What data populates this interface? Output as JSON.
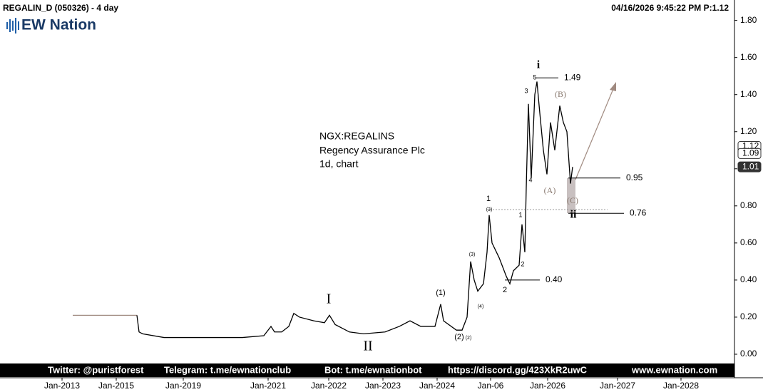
{
  "chart_data": {
    "type": "line",
    "title": "REGALIN_D (050326) - 4 day",
    "timestamp": "04/16/2026 9:45:22 PM  P:1.12",
    "logo": "EW Nation",
    "description": [
      "NGX:REGALINS",
      "Regency Assurance Plc",
      "1d, chart"
    ],
    "series": [
      {
        "color": "#a08a80",
        "x": [
          102,
          192
        ],
        "values": [
          0.21,
          0.21
        ]
      },
      {
        "color": "#000000",
        "x": [
          192,
          195,
          200,
          230,
          260,
          300,
          340,
          370,
          380,
          385,
          395,
          405,
          412,
          420,
          440,
          455,
          462,
          470,
          490,
          510,
          540,
          560,
          575,
          590,
          610,
          618,
          622,
          640,
          648,
          655,
          660,
          665,
          670,
          678,
          683,
          686,
          690,
          700,
          710,
          715,
          720,
          728,
          732,
          736,
          738,
          741,
          745,
          750,
          753,
          757,
          762,
          767,
          772,
          778,
          785,
          790,
          795,
          800,
          803
        ],
        "values": [
          0.21,
          0.12,
          0.11,
          0.09,
          0.09,
          0.09,
          0.09,
          0.1,
          0.15,
          0.12,
          0.12,
          0.15,
          0.22,
          0.2,
          0.18,
          0.17,
          0.21,
          0.16,
          0.12,
          0.11,
          0.12,
          0.15,
          0.18,
          0.15,
          0.15,
          0.27,
          0.18,
          0.13,
          0.13,
          0.2,
          0.5,
          0.4,
          0.34,
          0.38,
          0.55,
          0.75,
          0.6,
          0.52,
          0.42,
          0.38,
          0.45,
          0.48,
          0.7,
          0.55,
          0.9,
          1.35,
          0.95,
          1.4,
          1.47,
          1.3,
          1.1,
          0.97,
          1.25,
          1.1,
          1.34,
          1.25,
          1.2,
          0.92,
          1.01
        ]
      }
    ],
    "xlim": [
      0,
      1030
    ],
    "xticks": [
      {
        "value": 87,
        "label": "Jan-2013"
      },
      {
        "value": 163,
        "label": "Jan-2015"
      },
      {
        "value": 257,
        "label": "Jan-2019"
      },
      {
        "value": 376,
        "label": "Jan-2021"
      },
      {
        "value": 461,
        "label": "Jan-2022"
      },
      {
        "value": 537,
        "label": "Jan-2023"
      },
      {
        "value": 613,
        "label": "Jan-2024"
      },
      {
        "value": 688,
        "label": "Jan-06"
      },
      {
        "value": 768,
        "label": "Jan-2026"
      },
      {
        "value": 866,
        "label": "Jan-2027"
      },
      {
        "value": 955,
        "label": "Jan-2028"
      }
    ],
    "ylim": [
      -0.05,
      1.91
    ],
    "yticks": [
      {
        "value": 0,
        "label": "0.00"
      },
      {
        "value": 0.2,
        "label": "0.20"
      },
      {
        "value": 0.4,
        "label": "0.40"
      },
      {
        "value": 0.6,
        "label": "0.60"
      },
      {
        "value": 0.8,
        "label": "0.80"
      },
      {
        "value": 1.0,
        "label": "1.00"
      },
      {
        "value": 1.2,
        "label": "1.20"
      },
      {
        "value": 1.4,
        "label": "1.40"
      },
      {
        "value": 1.6,
        "label": "1.60"
      },
      {
        "value": 1.8,
        "label": "1.80"
      }
    ],
    "levels": [
      1.49,
      0.95,
      0.76,
      {
        "value": 0.4,
        "label": "0.40"
      }
    ],
    "price_tags": [
      1.12,
      1.09,
      1.01
    ],
    "wave_labels": [
      "i",
      "ii",
      "I",
      "II",
      "(1)",
      "(2)",
      "(B)",
      "(A)",
      "(C)",
      "1",
      "2",
      "3",
      "4",
      "5",
      "1",
      "2",
      "(3)",
      "(4)",
      "(3)",
      "(2)"
    ],
    "footer": [
      "Twitter: @puristforest",
      "Telegram: t.me/ewnationclub",
      "Bot: t.me/ewnationbot",
      "https://discord.gg/423XkR2uwC",
      "www.ewnation.com"
    ]
  }
}
